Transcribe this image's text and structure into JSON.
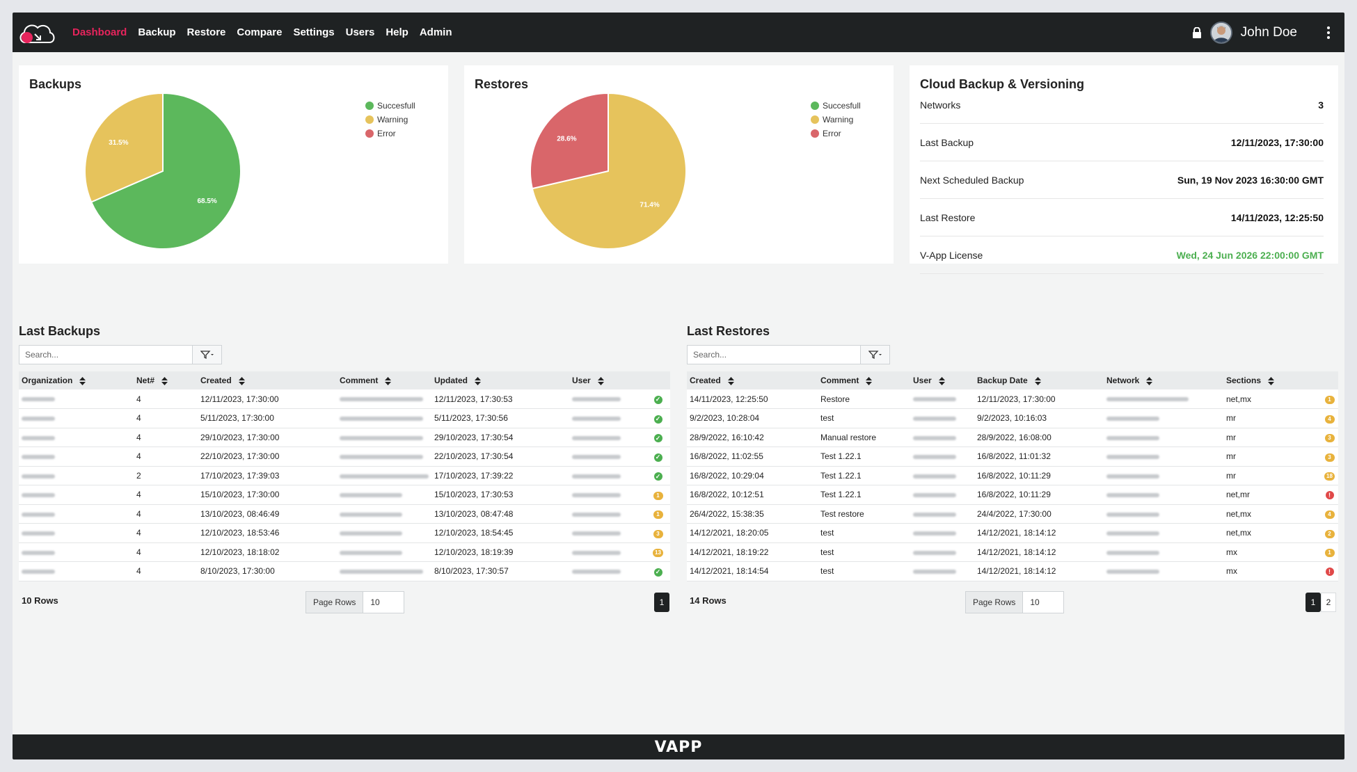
{
  "nav": {
    "items": [
      {
        "label": "Dashboard",
        "active": true
      },
      {
        "label": "Backup"
      },
      {
        "label": "Restore"
      },
      {
        "label": "Compare"
      },
      {
        "label": "Settings"
      },
      {
        "label": "Users"
      },
      {
        "label": "Help"
      },
      {
        "label": "Admin"
      }
    ],
    "user_name": "John Doe",
    "icons": [
      "cloud-logo-icon",
      "lock-icon",
      "avatar",
      "kebab-menu-icon"
    ]
  },
  "colors": {
    "brand": "#e6245c",
    "success": "#5cb85c",
    "warning": "#e6c35c",
    "error": "#d9666a",
    "dark": "#1f2223"
  },
  "backups_card": {
    "title": "Backups",
    "legend": [
      "Succesfull",
      "Warning",
      "Error"
    ]
  },
  "restores_card": {
    "title": "Restores",
    "legend": [
      "Succesfull",
      "Warning",
      "Error"
    ]
  },
  "chart_data": [
    {
      "type": "pie",
      "title": "Backups",
      "categories": [
        "Succesfull",
        "Warning",
        "Error"
      ],
      "values": [
        68.5,
        31.5,
        0
      ],
      "labels": [
        "68.5%",
        "31.5%",
        ""
      ],
      "colors": [
        "#5cb85c",
        "#e6c35c",
        "#d9666a"
      ]
    },
    {
      "type": "pie",
      "title": "Restores",
      "categories": [
        "Succesfull",
        "Warning",
        "Error"
      ],
      "values": [
        0,
        71.4,
        28.6
      ],
      "labels": [
        "",
        "71.4%",
        "28.6%"
      ],
      "colors": [
        "#5cb85c",
        "#e6c35c",
        "#d9666a"
      ]
    }
  ],
  "cloud_card": {
    "title": "Cloud Backup & Versioning",
    "rows": [
      {
        "label": "Networks",
        "value": "3"
      },
      {
        "label": "Last Backup",
        "value": "12/11/2023, 17:30:00"
      },
      {
        "label": "Next Scheduled Backup",
        "value": "Sun, 19 Nov 2023 16:30:00 GMT"
      },
      {
        "label": "Last Restore",
        "value": "14/11/2023, 12:25:50"
      },
      {
        "label": "V-App License",
        "value": "Wed, 24 Jun 2026 22:00:00 GMT"
      }
    ]
  },
  "last_backups": {
    "title": "Last Backups",
    "search_placeholder": "Search...",
    "columns": [
      "Organization",
      "Net#",
      "Created",
      "Comment",
      "Updated",
      "User"
    ],
    "rows": [
      {
        "net": "4",
        "created": "12/11/2023, 17:30:00",
        "updated": "12/11/2023, 17:30:53",
        "status": "ok",
        "badge": ""
      },
      {
        "net": "4",
        "created": "5/11/2023, 17:30:00",
        "updated": "5/11/2023, 17:30:56",
        "status": "ok",
        "badge": ""
      },
      {
        "net": "4",
        "created": "29/10/2023, 17:30:00",
        "updated": "29/10/2023, 17:30:54",
        "status": "ok",
        "badge": ""
      },
      {
        "net": "4",
        "created": "22/10/2023, 17:30:00",
        "updated": "22/10/2023, 17:30:54",
        "status": "ok",
        "badge": ""
      },
      {
        "net": "2",
        "created": "17/10/2023, 17:39:03",
        "updated": "17/10/2023, 17:39:22",
        "status": "ok",
        "badge": ""
      },
      {
        "net": "4",
        "created": "15/10/2023, 17:30:00",
        "updated": "15/10/2023, 17:30:53",
        "status": "warn",
        "badge": "1"
      },
      {
        "net": "4",
        "created": "13/10/2023, 08:46:49",
        "updated": "13/10/2023, 08:47:48",
        "status": "warn",
        "badge": "1"
      },
      {
        "net": "4",
        "created": "12/10/2023, 18:53:46",
        "updated": "12/10/2023, 18:54:45",
        "status": "warn",
        "badge": "3"
      },
      {
        "net": "4",
        "created": "12/10/2023, 18:18:02",
        "updated": "12/10/2023, 18:19:39",
        "status": "warn",
        "badge": "13"
      },
      {
        "net": "4",
        "created": "8/10/2023, 17:30:00",
        "updated": "8/10/2023, 17:30:57",
        "status": "ok",
        "badge": ""
      }
    ],
    "rows_count": "10 Rows",
    "page_rows_label": "Page Rows",
    "page_rows_value": "10",
    "pages": [
      "1"
    ]
  },
  "last_restores": {
    "title": "Last Restores",
    "search_placeholder": "Search...",
    "columns": [
      "Created",
      "Comment",
      "User",
      "Backup Date",
      "Network",
      "Sections"
    ],
    "rows": [
      {
        "created": "14/11/2023, 12:25:50",
        "comment": "Restore",
        "backup_date": "12/11/2023, 17:30:00",
        "sections": "net,mx",
        "status": "warn",
        "badge": "1"
      },
      {
        "created": "9/2/2023, 10:28:04",
        "comment": "test",
        "backup_date": "9/2/2023, 10:16:03",
        "sections": "mr",
        "status": "warn",
        "badge": "4"
      },
      {
        "created": "28/9/2022, 16:10:42",
        "comment": "Manual restore",
        "backup_date": "28/9/2022, 16:08:00",
        "sections": "mr",
        "status": "warn",
        "badge": "3"
      },
      {
        "created": "16/8/2022, 11:02:55",
        "comment": "Test 1.22.1",
        "backup_date": "16/8/2022, 11:01:32",
        "sections": "mr",
        "status": "warn",
        "badge": "3"
      },
      {
        "created": "16/8/2022, 10:29:04",
        "comment": "Test 1.22.1",
        "backup_date": "16/8/2022, 10:11:29",
        "sections": "mr",
        "status": "warn",
        "badge": "18"
      },
      {
        "created": "16/8/2022, 10:12:51",
        "comment": "Test 1.22.1",
        "backup_date": "16/8/2022, 10:11:29",
        "sections": "net,mr",
        "status": "err",
        "badge": "!"
      },
      {
        "created": "26/4/2022, 15:38:35",
        "comment": "Test restore",
        "backup_date": "24/4/2022, 17:30:00",
        "sections": "net,mx",
        "status": "warn",
        "badge": "4"
      },
      {
        "created": "14/12/2021, 18:20:05",
        "comment": "test",
        "backup_date": "14/12/2021, 18:14:12",
        "sections": "net,mx",
        "status": "warn",
        "badge": "2"
      },
      {
        "created": "14/12/2021, 18:19:22",
        "comment": "test",
        "backup_date": "14/12/2021, 18:14:12",
        "sections": "mx",
        "status": "warn",
        "badge": "1"
      },
      {
        "created": "14/12/2021, 18:14:54",
        "comment": "test",
        "backup_date": "14/12/2021, 18:14:12",
        "sections": "mx",
        "status": "err",
        "badge": "!"
      }
    ],
    "rows_count": "14 Rows",
    "page_rows_label": "Page Rows",
    "page_rows_value": "10",
    "pages": [
      "1",
      "2"
    ]
  },
  "footer": {
    "logo_text": "VAPP"
  }
}
